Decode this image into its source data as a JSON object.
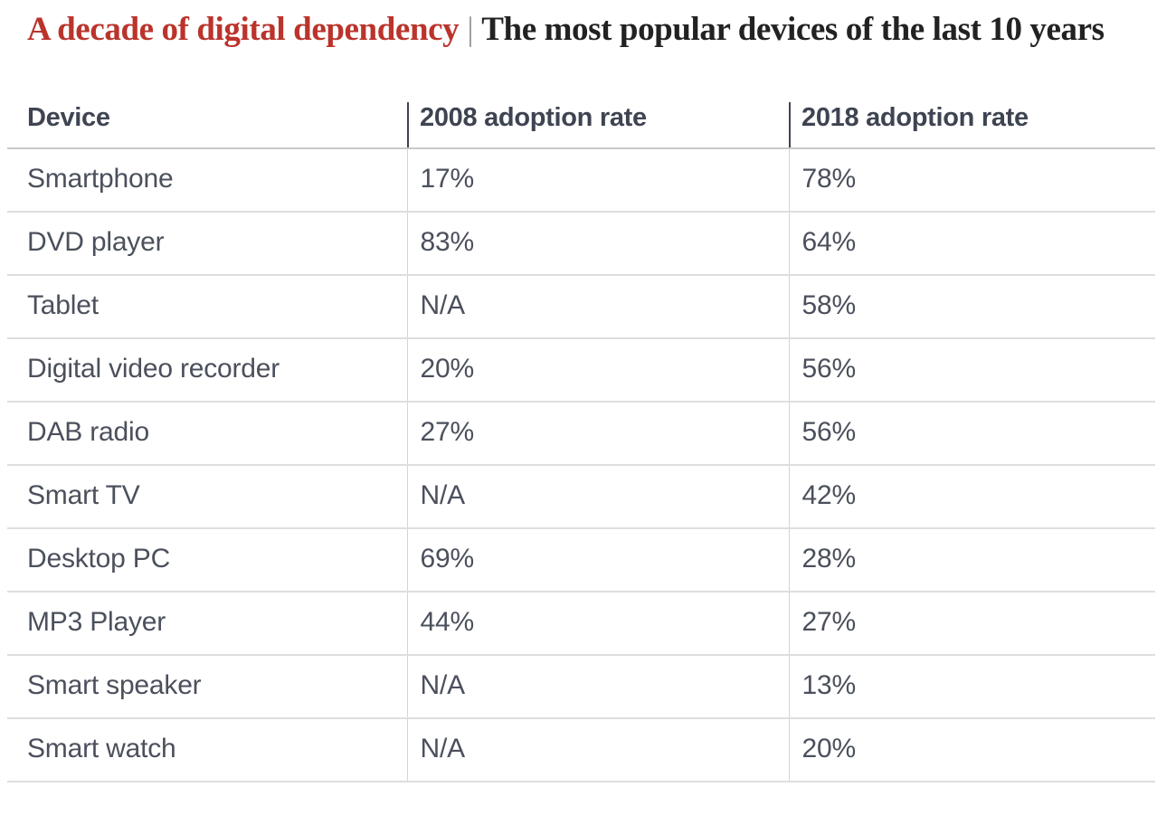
{
  "header": {
    "kicker": "A decade of digital dependency",
    "separator": "|",
    "title": "The most popular devices of the last 10 years"
  },
  "table": {
    "columns": [
      "Device",
      "2008 adoption rate",
      "2018 adoption rate"
    ],
    "rows": [
      [
        "Smartphone",
        "17%",
        "78%"
      ],
      [
        "DVD player",
        "83%",
        "64%"
      ],
      [
        "Tablet",
        "N/A",
        "58%"
      ],
      [
        "Digital video recorder",
        "20%",
        "56%"
      ],
      [
        "DAB radio",
        "27%",
        "56%"
      ],
      [
        "Smart TV",
        "N/A",
        "42%"
      ],
      [
        "Desktop PC",
        "69%",
        "28%"
      ],
      [
        "MP3 Player",
        "44%",
        "27%"
      ],
      [
        "Smart speaker",
        "N/A",
        "13%"
      ],
      [
        "Smart watch",
        "N/A",
        "20%"
      ]
    ]
  },
  "colors": {
    "kicker_red": "#ba342c",
    "title_dark": "#222222",
    "header_text": "#3e4451",
    "body_text": "#4b505c",
    "header_rule": "#c9c9c9",
    "row_rule": "#dedede",
    "cell_divider": "#d4d4d4"
  },
  "chart_data": {
    "type": "table",
    "title": "A decade of digital dependency — The most popular devices of the last 10 years",
    "categories": [
      "Smartphone",
      "DVD player",
      "Tablet",
      "Digital video recorder",
      "DAB radio",
      "Smart TV",
      "Desktop PC",
      "MP3 Player",
      "Smart speaker",
      "Smart watch"
    ],
    "series": [
      {
        "name": "2008 adoption rate",
        "values": [
          17,
          83,
          null,
          20,
          27,
          null,
          69,
          44,
          null,
          null
        ]
      },
      {
        "name": "2018 adoption rate",
        "values": [
          78,
          64,
          58,
          56,
          56,
          42,
          28,
          27,
          13,
          20
        ]
      }
    ],
    "na_label": "N/A",
    "unit": "%"
  }
}
